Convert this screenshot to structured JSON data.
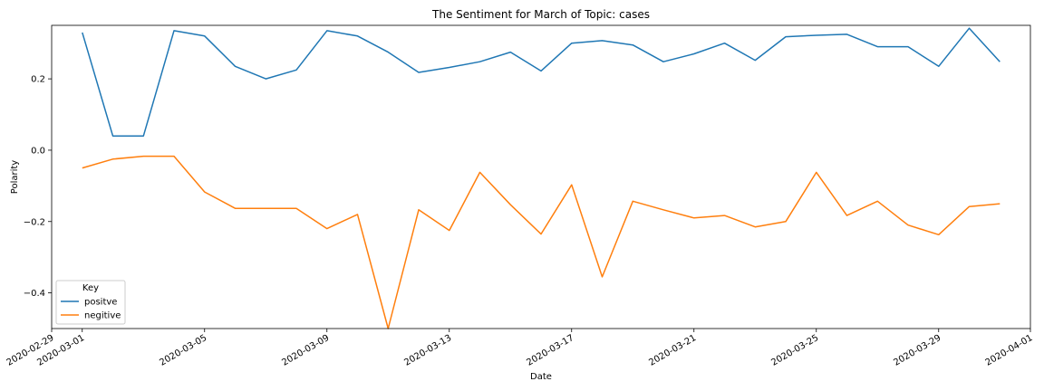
{
  "chart_data": {
    "type": "line",
    "title": "The Sentiment for March of Topic: cases",
    "xlabel": "Date",
    "ylabel": "Polarity",
    "xlim": [
      "2020-02-29",
      "2020-04-01"
    ],
    "ylim": [
      -0.5,
      0.35
    ],
    "x_ticks": [
      "2020-02-29",
      "2020-03-01",
      "2020-03-05",
      "2020-03-09",
      "2020-03-13",
      "2020-03-17",
      "2020-03-21",
      "2020-03-25",
      "2020-03-29",
      "2020-04-01"
    ],
    "y_ticks": [
      -0.4,
      -0.2,
      0.0,
      0.2
    ],
    "y_tick_labels": [
      "−0.4",
      "−0.2",
      "0.0",
      "0.2"
    ],
    "grid": false,
    "legend": {
      "title": "Key",
      "placement": "lower-left"
    },
    "x": [
      "2020-03-01",
      "2020-03-02",
      "2020-03-03",
      "2020-03-04",
      "2020-03-05",
      "2020-03-06",
      "2020-03-07",
      "2020-03-08",
      "2020-03-09",
      "2020-03-10",
      "2020-03-11",
      "2020-03-12",
      "2020-03-13",
      "2020-03-14",
      "2020-03-15",
      "2020-03-16",
      "2020-03-17",
      "2020-03-18",
      "2020-03-19",
      "2020-03-20",
      "2020-03-21",
      "2020-03-22",
      "2020-03-23",
      "2020-03-24",
      "2020-03-25",
      "2020-03-26",
      "2020-03-27",
      "2020-03-28",
      "2020-03-29",
      "2020-03-30",
      "2020-03-31"
    ],
    "series": [
      {
        "name": "positve",
        "color": "#1f77b4",
        "values": [
          0.33,
          0.04,
          0.04,
          0.335,
          0.32,
          0.235,
          0.2,
          0.225,
          0.335,
          0.32,
          0.275,
          0.218,
          0.232,
          0.248,
          0.275,
          0.222,
          0.3,
          0.307,
          0.295,
          0.248,
          0.27,
          0.3,
          0.252,
          0.318,
          0.322,
          0.325,
          0.29,
          0.29,
          0.235,
          0.342,
          0.248
        ]
      },
      {
        "name": "negitive",
        "color": "#ff7f0e",
        "values": [
          -0.05,
          -0.025,
          -0.017,
          -0.017,
          -0.117,
          -0.163,
          -0.163,
          -0.163,
          -0.22,
          -0.18,
          -0.5,
          -0.167,
          -0.225,
          -0.062,
          -0.153,
          -0.235,
          -0.097,
          -0.355,
          -0.143,
          -0.167,
          -0.19,
          -0.183,
          -0.215,
          -0.2,
          -0.062,
          -0.183,
          -0.143,
          -0.21,
          -0.237,
          -0.158,
          -0.15
        ]
      }
    ]
  }
}
